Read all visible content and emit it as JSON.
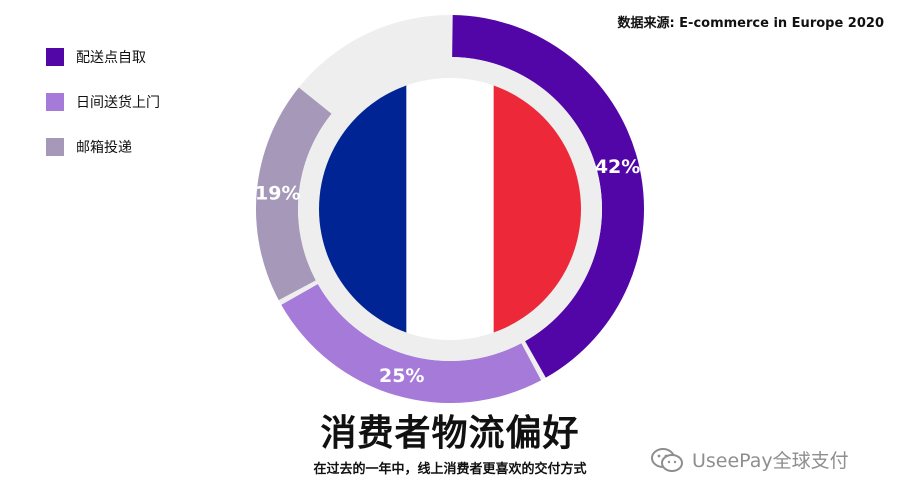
{
  "source": "数据来源: E-commerce in Europe 2020",
  "title": "消费者物流偏好",
  "subtitle": "在过去的一年中，线上消费者更喜欢的交付方式",
  "watermark": "UseePay全球支付",
  "colors": {
    "pickup": "#5206a8",
    "home": "#a57ad8",
    "postal": "#a698b8",
    "ring_bg": "#eeeeee",
    "flag_blue": "#002494",
    "flag_white": "#ffffff",
    "flag_red": "#ed2939"
  },
  "legend": [
    {
      "label": "配送点自取",
      "color": "#5206a8"
    },
    {
      "label": "日间送货上门",
      "color": "#a57ad8"
    },
    {
      "label": "邮箱投递",
      "color": "#a698b8"
    }
  ],
  "chart_data": {
    "type": "pie",
    "categories": [
      "配送点自取",
      "日间送货上门",
      "邮箱投递"
    ],
    "values": [
      42,
      25,
      19
    ],
    "value_labels": [
      "42%",
      "25%",
      "19%"
    ],
    "unit": "%",
    "legend_position": "top-left"
  }
}
